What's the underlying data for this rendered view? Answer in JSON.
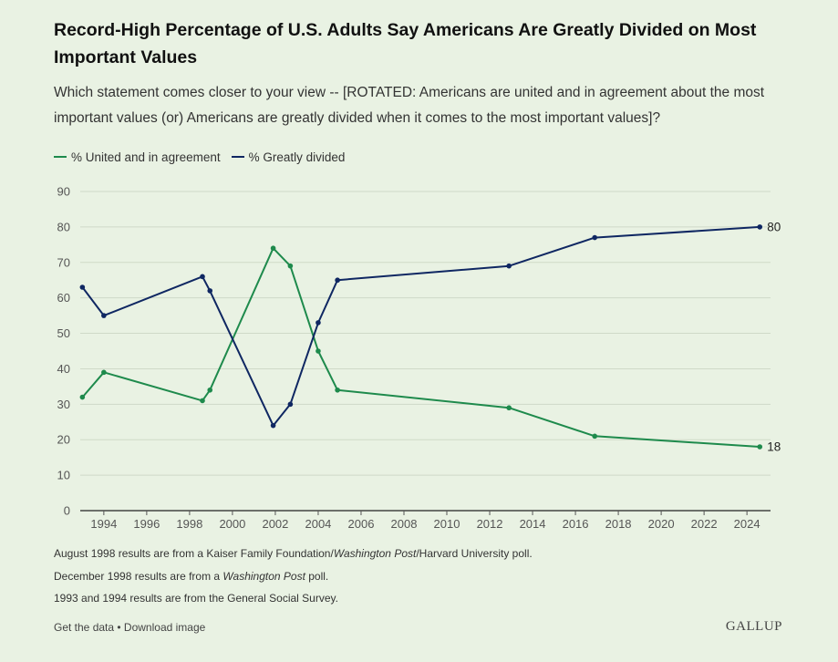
{
  "header": {
    "title": "Record-High Percentage of U.S. Adults Say Americans Are Greatly Divided on Most Important Values",
    "subtitle": "Which statement comes closer to your view -- [ROTATED: Americans are united and in agreement about the most important values (or) Americans are greatly divided when it comes to the most important values]?"
  },
  "legend": {
    "items": [
      {
        "label": "% United and in agreement",
        "color": "#1e8a4c"
      },
      {
        "label": "% Greatly divided",
        "color": "#0f2762"
      }
    ]
  },
  "chart_data": {
    "type": "line",
    "title": "Record-High Percentage of U.S. Adults Say Americans Are Greatly Divided on Most Important Values",
    "xlabel": "",
    "ylabel": "",
    "xlim": [
      1992.9,
      2025.1
    ],
    "ylim": [
      0,
      90
    ],
    "yticks": [
      0,
      10,
      20,
      30,
      40,
      50,
      60,
      70,
      80,
      90
    ],
    "xticks": [
      "1994",
      "1996",
      "1998",
      "2000",
      "2002",
      "2004",
      "2006",
      "2008",
      "2010",
      "2012",
      "2014",
      "2016",
      "2018",
      "2020",
      "2022",
      "2024"
    ],
    "grid": true,
    "legend_position": "top-left",
    "series": [
      {
        "name": "% United and in agreement",
        "color": "#1e8a4c",
        "x": [
          1993,
          1994,
          1998.6,
          1998.95,
          2001.9,
          2002.7,
          2004,
          2004.9,
          2012.9,
          2016.9,
          2024.6
        ],
        "values": [
          32,
          39,
          31,
          34,
          74,
          69,
          45,
          34,
          29,
          21,
          18
        ],
        "end_label": "18"
      },
      {
        "name": "% Greatly divided",
        "color": "#0f2762",
        "x": [
          1993,
          1994,
          1998.6,
          1998.95,
          2001.9,
          2002.7,
          2004,
          2004.9,
          2012.9,
          2016.9,
          2024.6
        ],
        "values": [
          63,
          55,
          66,
          62,
          24,
          30,
          53,
          65,
          69,
          77,
          80
        ],
        "end_label": "80"
      }
    ]
  },
  "notes": [
    [
      "August 1998 results are from a Kaiser Family Foundation/",
      "Washington Post",
      "/Harvard University poll."
    ],
    [
      "December 1998 results are from a ",
      "Washington Post",
      " poll."
    ],
    [
      "1993 and 1994 results are from the General Social Survey.",
      "",
      ""
    ]
  ],
  "footer": {
    "get_data": "Get the data",
    "separator": " • ",
    "download": "Download image",
    "brand": "GALLUP"
  }
}
